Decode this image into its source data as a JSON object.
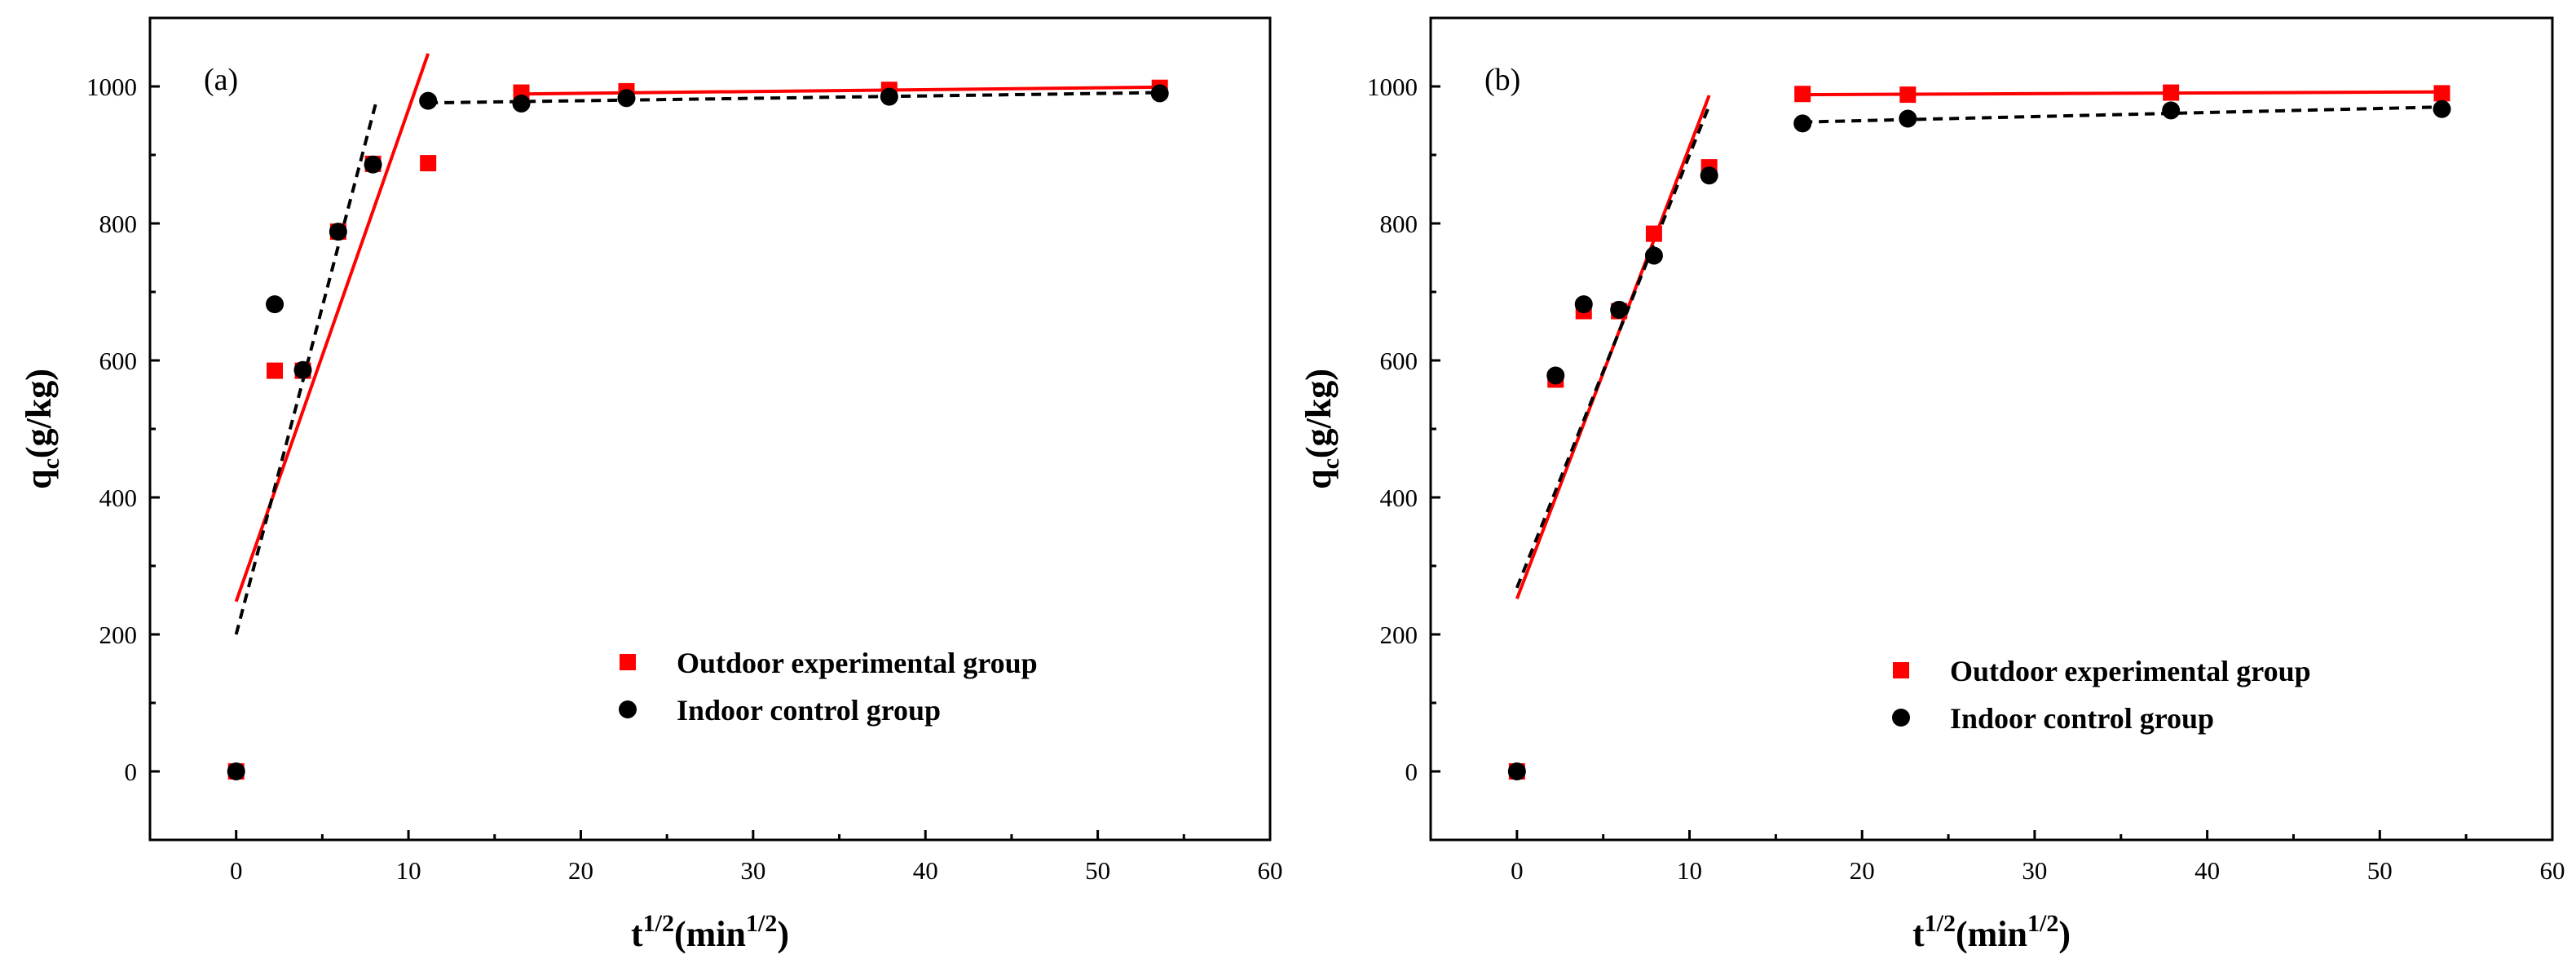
{
  "chart_data": [
    {
      "type": "scatter",
      "panel_label": "(a)",
      "xlabel": {
        "base": "t",
        "sup": "1/2",
        "paren_open": "(min",
        "unit_sup": "1/2",
        "paren_close": ")"
      },
      "ylabel": {
        "base": "q",
        "sub": "c",
        "rest": "(g/kg)"
      },
      "xlim": [
        -5,
        60
      ],
      "ylim": [
        -100,
        1100
      ],
      "xticks": [
        0,
        10,
        20,
        30,
        40,
        50,
        60
      ],
      "yticks": [
        0,
        200,
        400,
        600,
        800,
        1000
      ],
      "legend_position": "lower-right",
      "series": [
        {
          "name": "Outdoor experimental group",
          "marker": "square",
          "color": "#ff0000",
          "x": [
            0,
            2.24,
            3.87,
            5.92,
            7.94,
            11.14,
            16.55,
            22.65,
            37.9,
            53.6
          ],
          "y": [
            0,
            585,
            585,
            788,
            887,
            888,
            991,
            993,
            995,
            998
          ]
        },
        {
          "name": "Indoor control group",
          "marker": "circle",
          "color": "#000000",
          "x": [
            0,
            2.24,
            3.87,
            5.92,
            7.94,
            11.14,
            16.55,
            22.65,
            37.9,
            53.6
          ],
          "y": [
            0,
            682,
            586,
            788,
            886,
            979,
            975,
            983,
            985,
            990
          ]
        }
      ],
      "fit_lines": [
        {
          "series": "Outdoor experimental group",
          "style": "solid",
          "color": "#ff0000",
          "x": [
            0,
            11.14
          ],
          "y": [
            248,
            1048
          ]
        },
        {
          "series": "Outdoor experimental group",
          "style": "solid",
          "color": "#ff0000",
          "x": [
            16.55,
            53.6
          ],
          "y": [
            989,
            999
          ]
        },
        {
          "series": "Indoor control group",
          "style": "dashed",
          "color": "#000000",
          "x": [
            0,
            8.1
          ],
          "y": [
            200,
            975
          ]
        },
        {
          "series": "Indoor control group",
          "style": "dashed",
          "color": "#000000",
          "x": [
            11.14,
            53.6
          ],
          "y": [
            976,
            991
          ]
        }
      ]
    },
    {
      "type": "scatter",
      "panel_label": "(b)",
      "xlabel": {
        "base": "t",
        "sup": "1/2",
        "paren_open": "(min",
        "unit_sup": "1/2",
        "paren_close": ")"
      },
      "ylabel": {
        "base": "q",
        "sub": "c",
        "rest": "(g/kg)"
      },
      "xlim": [
        -5,
        60
      ],
      "ylim": [
        -100,
        1100
      ],
      "xticks": [
        0,
        10,
        20,
        30,
        40,
        50,
        60
      ],
      "yticks": [
        0,
        200,
        400,
        600,
        800,
        1000
      ],
      "legend_position": "lower-right",
      "series": [
        {
          "name": "Outdoor experimental group",
          "marker": "square",
          "color": "#ff0000",
          "x": [
            0,
            2.24,
            3.87,
            5.92,
            7.94,
            11.14,
            16.55,
            22.65,
            37.9,
            53.6
          ],
          "y": [
            0,
            572,
            672,
            672,
            785,
            882,
            989,
            988,
            991,
            990
          ]
        },
        {
          "name": "Indoor control group",
          "marker": "circle",
          "color": "#000000",
          "x": [
            0,
            2.24,
            3.87,
            5.92,
            7.94,
            11.14,
            16.55,
            22.65,
            37.9,
            53.6
          ],
          "y": [
            0,
            578,
            682,
            674,
            753,
            870,
            946,
            953,
            965,
            967
          ]
        }
      ],
      "fit_lines": [
        {
          "series": "Outdoor experimental group",
          "style": "solid",
          "color": "#ff0000",
          "x": [
            0,
            11.14
          ],
          "y": [
            252,
            987
          ]
        },
        {
          "series": "Outdoor experimental group",
          "style": "solid",
          "color": "#ff0000",
          "x": [
            16.55,
            53.6
          ],
          "y": [
            988,
            992
          ]
        },
        {
          "series": "Indoor control group",
          "style": "dashed",
          "color": "#000000",
          "x": [
            0,
            11.14
          ],
          "y": [
            268,
            972
          ]
        },
        {
          "series": "Indoor control group",
          "style": "dashed",
          "color": "#000000",
          "x": [
            16.55,
            53.6
          ],
          "y": [
            948,
            970
          ]
        }
      ]
    }
  ]
}
